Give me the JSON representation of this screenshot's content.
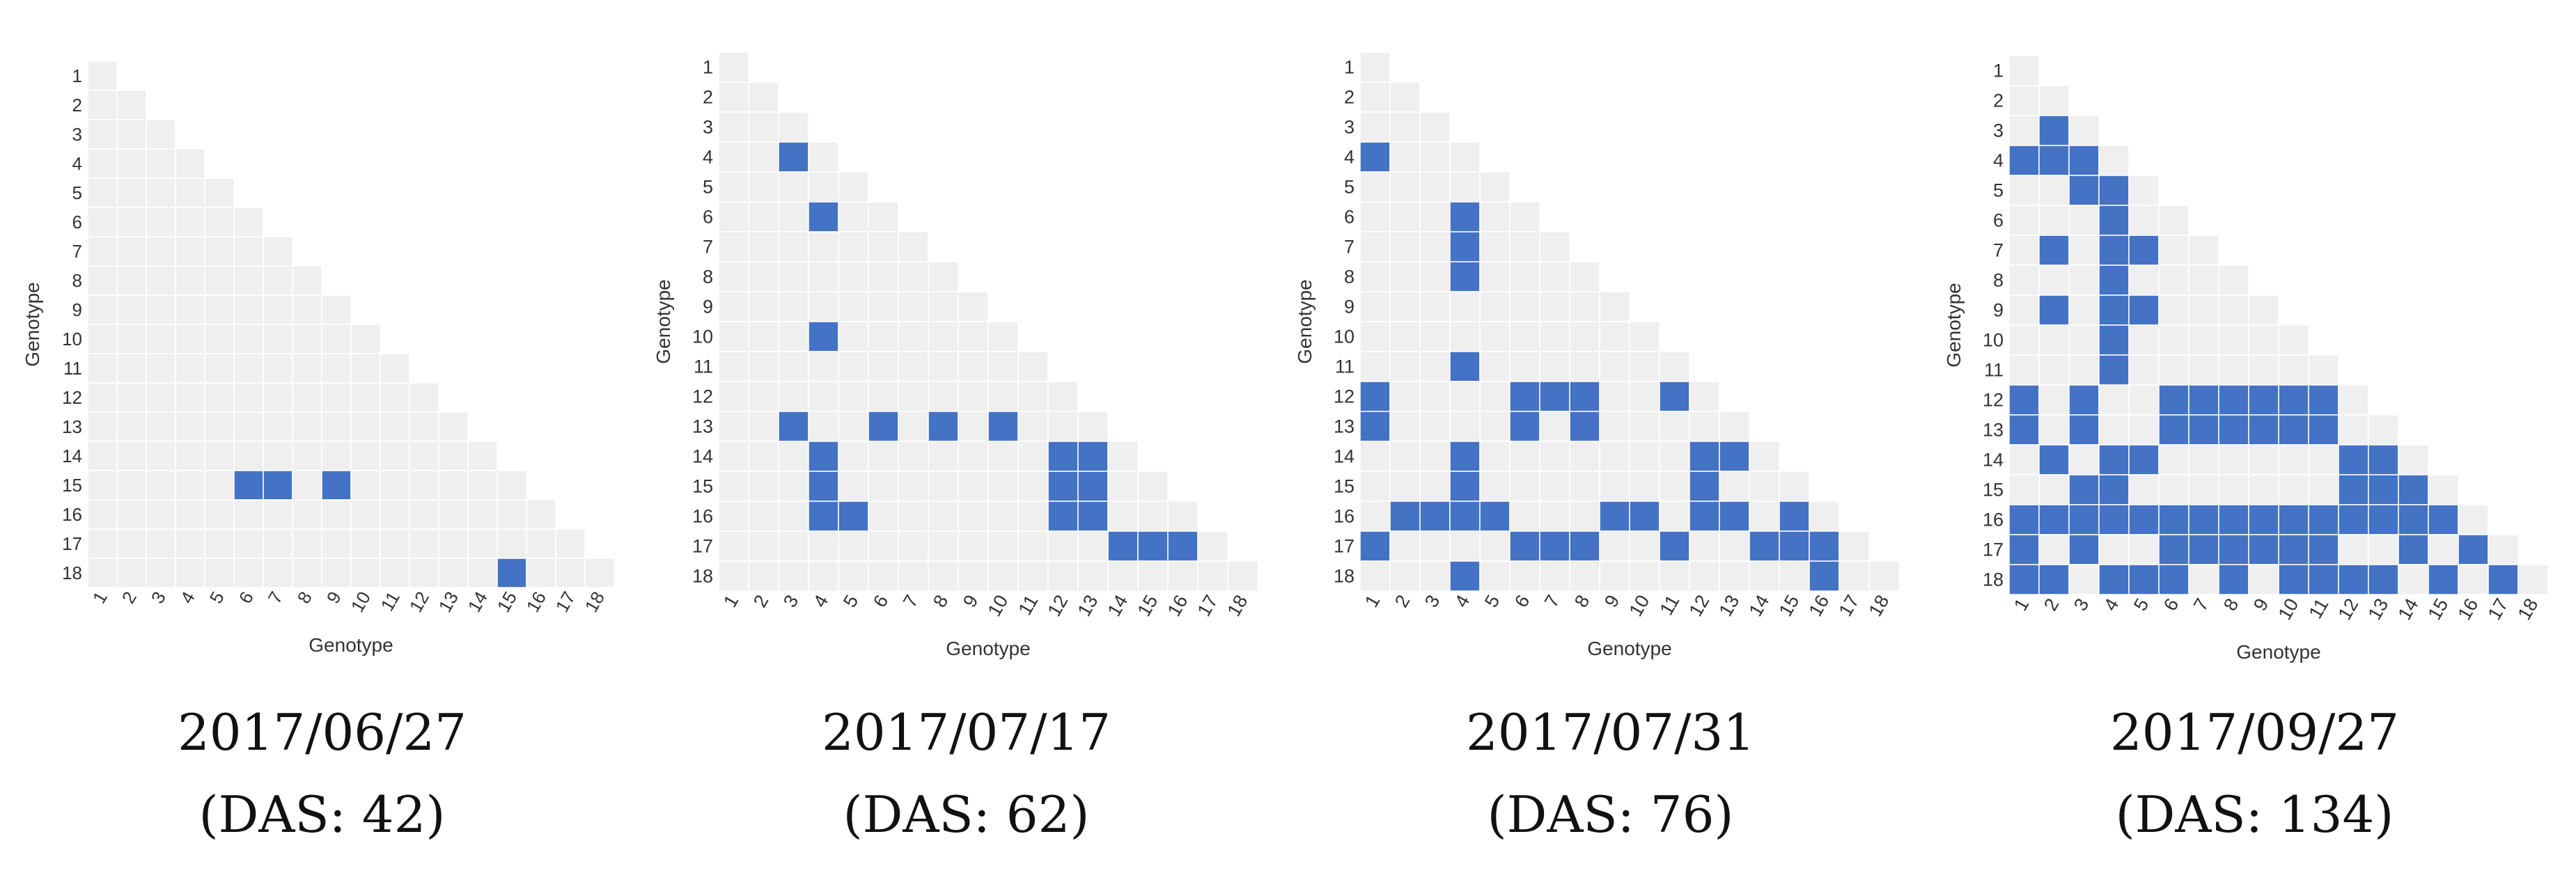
{
  "chart_data": [
    {
      "type": "heatmap",
      "subtype": "lower-triangular significance matrix",
      "xlabel": "Genotype",
      "ylabel": "Genotype",
      "labels": [
        "1",
        "2",
        "3",
        "4",
        "5",
        "6",
        "7",
        "8",
        "9",
        "10",
        "11",
        "12",
        "13",
        "14",
        "15",
        "16",
        "17",
        "18"
      ],
      "colors": {
        "significant": "#4472C4",
        "not_significant": "#EFEFEF"
      },
      "significant_pairs": [
        [
          15,
          6
        ],
        [
          15,
          7
        ],
        [
          15,
          9
        ],
        [
          18,
          15
        ]
      ],
      "caption_date": "2017/06/27",
      "caption_das": "(DAS: 42)"
    },
    {
      "type": "heatmap",
      "subtype": "lower-triangular significance matrix",
      "xlabel": "Genotype",
      "ylabel": "Genotype",
      "labels": [
        "1",
        "2",
        "3",
        "4",
        "5",
        "6",
        "7",
        "8",
        "9",
        "10",
        "11",
        "12",
        "13",
        "14",
        "15",
        "16",
        "17",
        "18"
      ],
      "colors": {
        "significant": "#4472C4",
        "not_significant": "#EFEFEF"
      },
      "significant_pairs": [
        [
          4,
          3
        ],
        [
          6,
          4
        ],
        [
          10,
          4
        ],
        [
          13,
          3
        ],
        [
          13,
          6
        ],
        [
          13,
          8
        ],
        [
          13,
          10
        ],
        [
          14,
          4
        ],
        [
          14,
          12
        ],
        [
          14,
          13
        ],
        [
          15,
          4
        ],
        [
          15,
          12
        ],
        [
          15,
          13
        ],
        [
          16,
          4
        ],
        [
          16,
          5
        ],
        [
          16,
          12
        ],
        [
          16,
          13
        ],
        [
          17,
          14
        ],
        [
          17,
          15
        ],
        [
          17,
          16
        ]
      ],
      "caption_date": "2017/07/17",
      "caption_das": "(DAS: 62)"
    },
    {
      "type": "heatmap",
      "subtype": "lower-triangular significance matrix",
      "xlabel": "Genotype",
      "ylabel": "Genotype",
      "labels": [
        "1",
        "2",
        "3",
        "4",
        "5",
        "6",
        "7",
        "8",
        "9",
        "10",
        "11",
        "12",
        "13",
        "14",
        "15",
        "16",
        "17",
        "18"
      ],
      "colors": {
        "significant": "#4472C4",
        "not_significant": "#EFEFEF"
      },
      "significant_pairs": [
        [
          4,
          1
        ],
        [
          6,
          4
        ],
        [
          7,
          4
        ],
        [
          8,
          4
        ],
        [
          11,
          4
        ],
        [
          12,
          1
        ],
        [
          12,
          6
        ],
        [
          12,
          7
        ],
        [
          12,
          8
        ],
        [
          12,
          11
        ],
        [
          13,
          1
        ],
        [
          13,
          6
        ],
        [
          13,
          8
        ],
        [
          14,
          4
        ],
        [
          14,
          12
        ],
        [
          14,
          13
        ],
        [
          15,
          4
        ],
        [
          15,
          12
        ],
        [
          16,
          2
        ],
        [
          16,
          3
        ],
        [
          16,
          4
        ],
        [
          16,
          5
        ],
        [
          16,
          9
        ],
        [
          16,
          10
        ],
        [
          16,
          12
        ],
        [
          16,
          13
        ],
        [
          16,
          15
        ],
        [
          17,
          1
        ],
        [
          17,
          6
        ],
        [
          17,
          7
        ],
        [
          17,
          8
        ],
        [
          17,
          11
        ],
        [
          17,
          14
        ],
        [
          17,
          15
        ],
        [
          17,
          16
        ],
        [
          18,
          4
        ],
        [
          18,
          16
        ]
      ],
      "caption_date": "2017/07/31",
      "caption_das": "(DAS: 76)"
    },
    {
      "type": "heatmap",
      "subtype": "lower-triangular significance matrix",
      "xlabel": "Genotype",
      "ylabel": "Genotype",
      "labels": [
        "1",
        "2",
        "3",
        "4",
        "5",
        "6",
        "7",
        "8",
        "9",
        "10",
        "11",
        "12",
        "13",
        "14",
        "15",
        "16",
        "17",
        "18"
      ],
      "colors": {
        "significant": "#4472C4",
        "not_significant": "#EFEFEF"
      },
      "significant_pairs": [
        [
          3,
          2
        ],
        [
          4,
          1
        ],
        [
          4,
          2
        ],
        [
          4,
          3
        ],
        [
          5,
          3
        ],
        [
          5,
          4
        ],
        [
          6,
          4
        ],
        [
          7,
          2
        ],
        [
          7,
          4
        ],
        [
          7,
          5
        ],
        [
          8,
          4
        ],
        [
          9,
          2
        ],
        [
          9,
          4
        ],
        [
          9,
          5
        ],
        [
          10,
          4
        ],
        [
          11,
          4
        ],
        [
          12,
          1
        ],
        [
          12,
          3
        ],
        [
          12,
          6
        ],
        [
          12,
          7
        ],
        [
          12,
          8
        ],
        [
          12,
          9
        ],
        [
          12,
          10
        ],
        [
          12,
          11
        ],
        [
          13,
          1
        ],
        [
          13,
          3
        ],
        [
          13,
          6
        ],
        [
          13,
          7
        ],
        [
          13,
          8
        ],
        [
          13,
          9
        ],
        [
          13,
          10
        ],
        [
          13,
          11
        ],
        [
          14,
          2
        ],
        [
          14,
          4
        ],
        [
          14,
          5
        ],
        [
          14,
          12
        ],
        [
          14,
          13
        ],
        [
          15,
          3
        ],
        [
          15,
          4
        ],
        [
          15,
          12
        ],
        [
          15,
          13
        ],
        [
          15,
          14
        ],
        [
          16,
          1
        ],
        [
          16,
          2
        ],
        [
          16,
          3
        ],
        [
          16,
          4
        ],
        [
          16,
          5
        ],
        [
          16,
          6
        ],
        [
          16,
          7
        ],
        [
          16,
          8
        ],
        [
          16,
          9
        ],
        [
          16,
          10
        ],
        [
          16,
          11
        ],
        [
          16,
          12
        ],
        [
          16,
          13
        ],
        [
          16,
          14
        ],
        [
          16,
          15
        ],
        [
          17,
          1
        ],
        [
          17,
          3
        ],
        [
          17,
          6
        ],
        [
          17,
          7
        ],
        [
          17,
          8
        ],
        [
          17,
          9
        ],
        [
          17,
          10
        ],
        [
          17,
          11
        ],
        [
          17,
          14
        ],
        [
          17,
          16
        ],
        [
          18,
          1
        ],
        [
          18,
          2
        ],
        [
          18,
          4
        ],
        [
          18,
          5
        ],
        [
          18,
          6
        ],
        [
          18,
          8
        ],
        [
          18,
          10
        ],
        [
          18,
          11
        ],
        [
          18,
          12
        ],
        [
          18,
          13
        ],
        [
          18,
          15
        ],
        [
          18,
          17
        ]
      ],
      "caption_date": "2017/09/27",
      "caption_das": "(DAS: 134)"
    }
  ]
}
